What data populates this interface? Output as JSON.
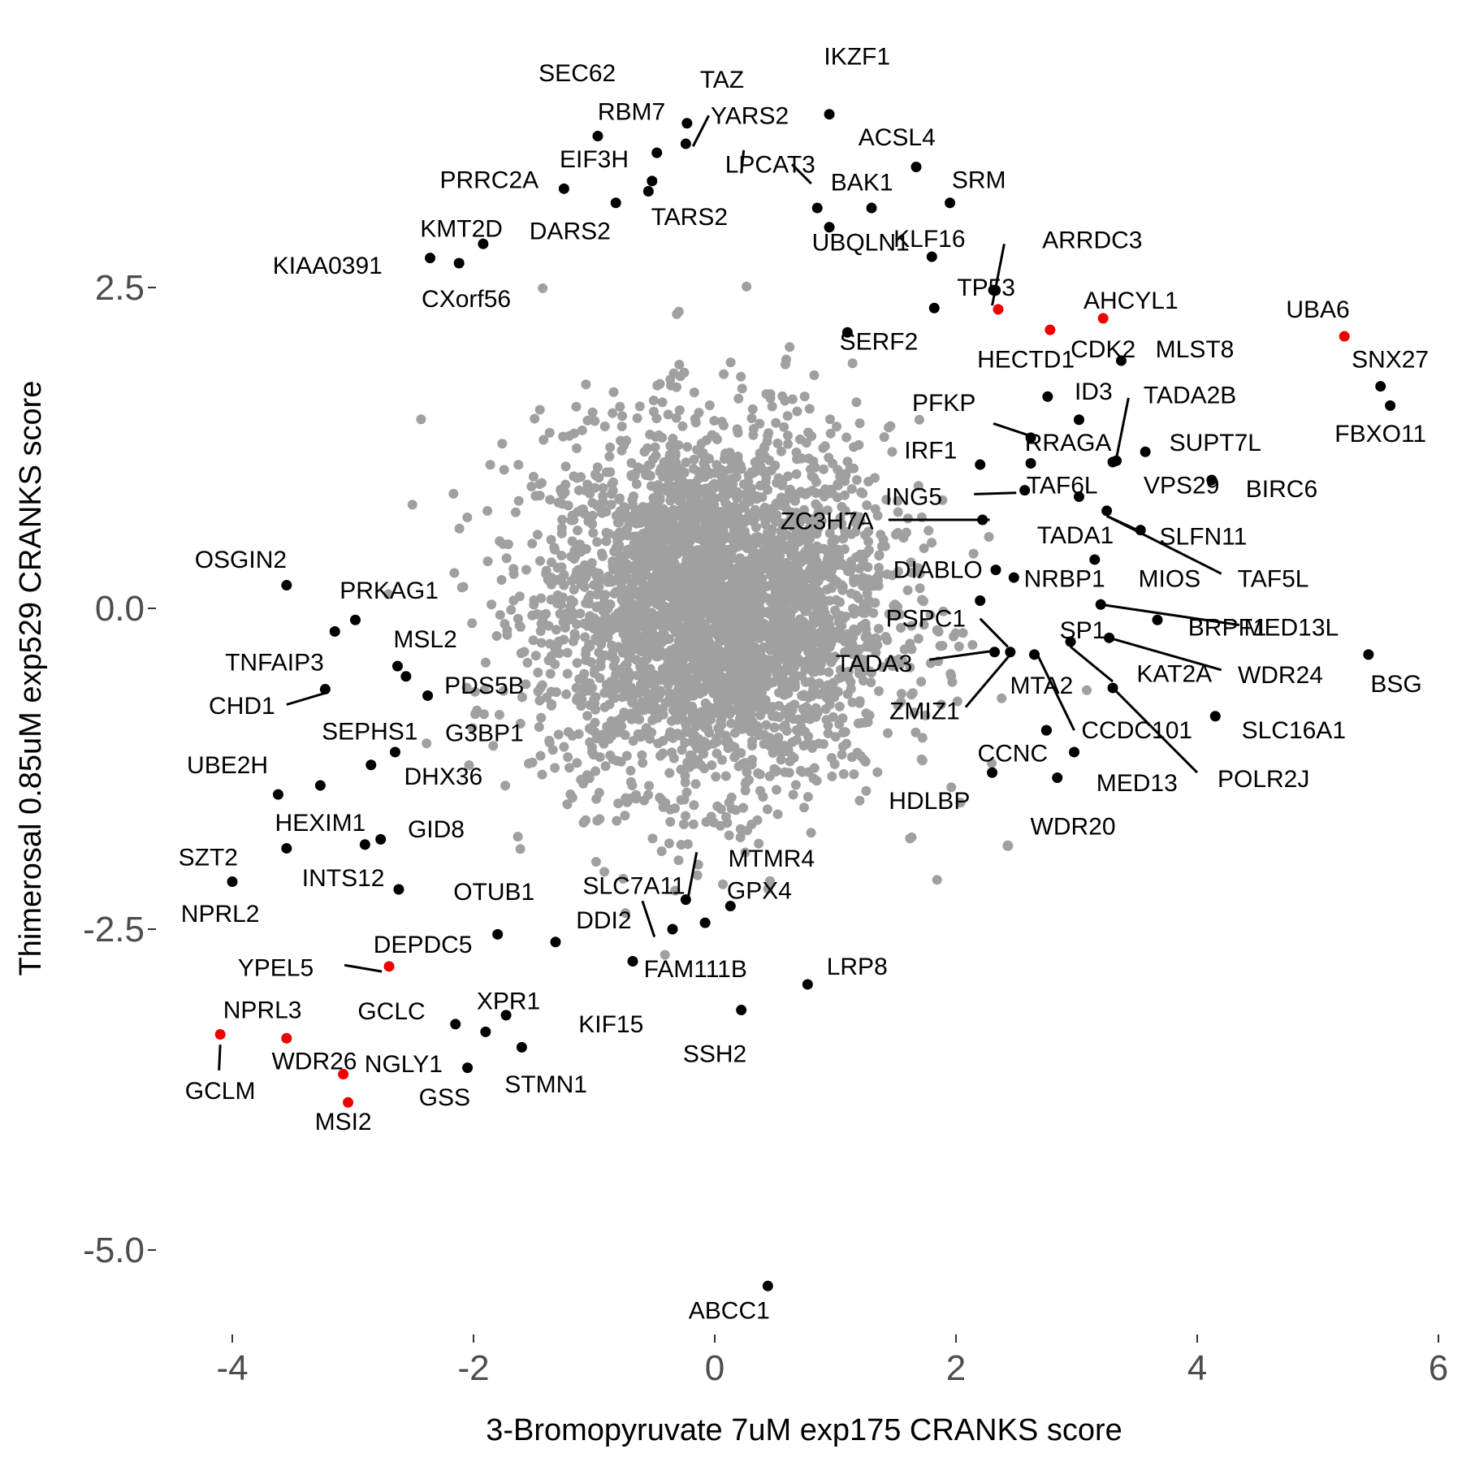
{
  "chart_data": {
    "type": "scatter",
    "xlabel": "3-Bromopyruvate 7uM exp175 CRANKS score",
    "ylabel": "Thimerosal 0.85uM exp529 CRANKS score",
    "xlim": [
      -4.6,
      6.0
    ],
    "ylim": [
      -5.8,
      4.2
    ],
    "x_ticks": [
      -4,
      -2,
      0,
      2,
      4,
      6
    ],
    "x_tick_labels": [
      "-4",
      "-2",
      "0",
      "2",
      "4",
      "6"
    ],
    "y_ticks": [
      2.5,
      0.0,
      -2.5,
      -5.0
    ],
    "y_tick_labels": [
      "2.5",
      "0.0",
      "-2.5",
      "-5.0"
    ],
    "grid": false,
    "colors": {
      "background_points": "#a0a0a0",
      "labeled_points": "#000000",
      "highlight_points": "#ee0000"
    },
    "background_cloud": {
      "description_free": true,
      "count": 3500,
      "x_center": 0.0,
      "y_center": 0.0
    },
    "points": [
      {
        "gene": "IKZF1",
        "x": 0.95,
        "y": 3.85
      },
      {
        "gene": "SEC62",
        "x": -0.97,
        "y": 3.68
      },
      {
        "gene": "TAZ",
        "x": -0.23,
        "y": 3.78
      },
      {
        "gene": "RBM7",
        "x": -0.48,
        "y": 3.55
      },
      {
        "gene": "YARS2",
        "x": -0.24,
        "y": 3.62
      },
      {
        "gene": "ACSL4",
        "x": 1.67,
        "y": 3.44
      },
      {
        "gene": "EIF3H",
        "x": -0.52,
        "y": 3.33
      },
      {
        "gene": "PRRC2A",
        "x": -1.25,
        "y": 3.27
      },
      {
        "gene": "LPCAT3",
        "x": 0.85,
        "y": 3.12
      },
      {
        "gene": "BAK1",
        "x": 1.3,
        "y": 3.12
      },
      {
        "gene": "SRM",
        "x": 1.95,
        "y": 3.16
      },
      {
        "gene": "KLF16",
        "x": 1.8,
        "y": 2.74
      },
      {
        "gene": "UBQLN1",
        "x": 0.95,
        "y": 2.97
      },
      {
        "gene": "TARS2",
        "x": -0.55,
        "y": 3.25
      },
      {
        "gene": "DARS2",
        "x": -0.82,
        "y": 3.16
      },
      {
        "gene": "KMT2D",
        "x": -1.92,
        "y": 2.84
      },
      {
        "gene": "KIAA0391",
        "x": -2.36,
        "y": 2.73
      },
      {
        "gene": "CXorf56",
        "x": -2.12,
        "y": 2.69
      },
      {
        "gene": "ARRDC3",
        "x": 2.31,
        "y": 2.48
      },
      {
        "gene": "TP53",
        "x": 2.35,
        "y": 2.33,
        "highlight": true
      },
      {
        "gene": "AHCYL1",
        "x": 3.22,
        "y": 2.26,
        "highlight": true
      },
      {
        "gene": "CDK2",
        "x": 2.78,
        "y": 2.17,
        "highlight": true
      },
      {
        "gene": "UBA6",
        "x": 5.22,
        "y": 2.12,
        "highlight": true
      },
      {
        "gene": "SERF2",
        "x": 1.1,
        "y": 2.15
      },
      {
        "gene": "HECTD1",
        "x": 1.82,
        "y": 2.34
      },
      {
        "gene": "MLST8",
        "x": 3.37,
        "y": 1.93
      },
      {
        "gene": "SNX27",
        "x": 5.52,
        "y": 1.73
      },
      {
        "gene": "FBXO11",
        "x": 5.6,
        "y": 1.58
      },
      {
        "gene": "ID3",
        "x": 2.76,
        "y": 1.65
      },
      {
        "gene": "PFKP",
        "x": 3.02,
        "y": 1.47
      },
      {
        "gene": "TADA2B",
        "x": 3.33,
        "y": 1.15
      },
      {
        "gene": "RRAGA",
        "x": 2.62,
        "y": 1.33
      },
      {
        "gene": "SUPT7L",
        "x": 3.57,
        "y": 1.22
      },
      {
        "gene": "IRF1",
        "x": 2.2,
        "y": 1.12
      },
      {
        "gene": "TAF6L",
        "x": 2.62,
        "y": 1.13
      },
      {
        "gene": "VPS29",
        "x": 3.3,
        "y": 1.14
      },
      {
        "gene": "BIRC6",
        "x": 4.12,
        "y": 1.0
      },
      {
        "gene": "ING5",
        "x": 2.57,
        "y": 0.92
      },
      {
        "gene": "TADA1",
        "x": 3.02,
        "y": 0.87
      },
      {
        "gene": "ZC3H7A",
        "x": 2.22,
        "y": 0.69
      },
      {
        "gene": "TAF5L",
        "x": 3.25,
        "y": 0.76
      },
      {
        "gene": "SLFN11",
        "x": 3.53,
        "y": 0.61
      },
      {
        "gene": "DIABLO",
        "x": 2.33,
        "y": 0.3
      },
      {
        "gene": "NRBP1",
        "x": 2.48,
        "y": 0.24
      },
      {
        "gene": "MIOS",
        "x": 3.15,
        "y": 0.38
      },
      {
        "gene": "MED13L",
        "x": 3.2,
        "y": 0.03
      },
      {
        "gene": "PSPC1",
        "x": 2.2,
        "y": 0.06
      },
      {
        "gene": "BRPF1",
        "x": 3.67,
        "y": -0.09
      },
      {
        "gene": "BSG",
        "x": 5.42,
        "y": -0.36
      },
      {
        "gene": "SP1",
        "x": 2.95,
        "y": -0.26
      },
      {
        "gene": "WDR24",
        "x": 3.27,
        "y": -0.23
      },
      {
        "gene": "TADA3",
        "x": 2.32,
        "y": -0.34
      },
      {
        "gene": "KAT2A",
        "x": 3.3,
        "y": -0.62
      },
      {
        "gene": "MTA2",
        "x": 2.65,
        "y": -0.36
      },
      {
        "gene": "ZMIZ1",
        "x": 2.45,
        "y": -0.34
      },
      {
        "gene": "CCDC101",
        "x": 2.75,
        "y": -0.95
      },
      {
        "gene": "SLC16A1",
        "x": 4.15,
        "y": -0.84
      },
      {
        "gene": "POLR2J",
        "x": 2.98,
        "y": -1.12
      },
      {
        "gene": "CCNC",
        "x": 2.75,
        "y": -0.95
      },
      {
        "gene": "MED13",
        "x": 2.84,
        "y": -1.32
      },
      {
        "gene": "HDLBP",
        "x": 2.3,
        "y": -1.28
      },
      {
        "gene": "WDR20",
        "x": 2.43,
        "y": -1.85,
        "background_color": true
      },
      {
        "gene": "OSGIN2",
        "x": -3.55,
        "y": 0.18
      },
      {
        "gene": "PRKAG1",
        "x": -2.98,
        "y": -0.09
      },
      {
        "gene": "MSL2",
        "x": -2.63,
        "y": -0.45
      },
      {
        "gene": "TNFAIP3",
        "x": -3.15,
        "y": -0.18
      },
      {
        "gene": "CHD1",
        "x": -3.23,
        "y": -0.63
      },
      {
        "gene": "PDS5B",
        "x": -2.56,
        "y": -0.53
      },
      {
        "gene": "SEPHS1",
        "x": -2.38,
        "y": -0.68
      },
      {
        "gene": "G3BP1",
        "x": -2.65,
        "y": -1.12
      },
      {
        "gene": "DHX36",
        "x": -2.85,
        "y": -1.22
      },
      {
        "gene": "UBE2H",
        "x": -3.62,
        "y": -1.45
      },
      {
        "gene": "HEXIM1",
        "x": -3.27,
        "y": -1.38
      },
      {
        "gene": "GID8",
        "x": -2.77,
        "y": -1.8
      },
      {
        "gene": "INTS12",
        "x": -2.9,
        "y": -1.84
      },
      {
        "gene": "SZT2",
        "x": -3.55,
        "y": -1.87
      },
      {
        "gene": "NPRL2",
        "x": -4.0,
        "y": -2.13
      },
      {
        "gene": "OTUB1",
        "x": -2.62,
        "y": -2.19
      },
      {
        "gene": "DEPDC5",
        "x": -1.8,
        "y": -2.54
      },
      {
        "gene": "YPEL5",
        "x": -2.7,
        "y": -2.79,
        "highlight": true
      },
      {
        "gene": "GCLC",
        "x": -2.15,
        "y": -3.24
      },
      {
        "gene": "XPR1",
        "x": -1.73,
        "y": -3.17
      },
      {
        "gene": "NPRL3",
        "x": -4.1,
        "y": -3.32,
        "highlight": true
      },
      {
        "gene": "WDR26",
        "x": -3.55,
        "y": -3.35,
        "highlight": true
      },
      {
        "gene": "NGLY1",
        "x": -1.9,
        "y": -3.3
      },
      {
        "gene": "GCLM",
        "x": -3.08,
        "y": -3.63,
        "highlight": true
      },
      {
        "gene": "MSI2",
        "x": -3.04,
        "y": -3.85,
        "highlight": true
      },
      {
        "gene": "STMN1",
        "x": -1.6,
        "y": -3.42
      },
      {
        "gene": "GSS",
        "x": -2.05,
        "y": -3.58
      },
      {
        "gene": "KIF15",
        "x": -1.32,
        "y": -2.6
      },
      {
        "gene": "SLC7A11",
        "x": -0.35,
        "y": -2.5
      },
      {
        "gene": "DDI2",
        "x": -0.68,
        "y": -2.75
      },
      {
        "gene": "MTMR4",
        "x": -0.24,
        "y": -2.27
      },
      {
        "gene": "GPX4",
        "x": 0.13,
        "y": -2.32
      },
      {
        "gene": "FAM111B",
        "x": -0.08,
        "y": -2.45
      },
      {
        "gene": "LRP8",
        "x": 0.77,
        "y": -2.93
      },
      {
        "gene": "SSH2",
        "x": 0.22,
        "y": -3.13
      },
      {
        "gene": "ABCC1",
        "x": 0.44,
        "y": -5.28
      }
    ],
    "labels": [
      {
        "text": "IKZF1",
        "lx": 1.18,
        "ly": 4.3
      },
      {
        "text": "SEC62",
        "lx": -1.14,
        "ly": 4.17
      },
      {
        "text": "TAZ",
        "lx": 0.06,
        "ly": 4.12
      },
      {
        "text": "RBM7",
        "lx": -0.69,
        "ly": 3.87
      },
      {
        "text": "YARS2",
        "lx": 0.29,
        "ly": 3.84
      },
      {
        "text": "ACSL4",
        "lx": 1.51,
        "ly": 3.67
      },
      {
        "text": "EIF3H",
        "lx": -1.0,
        "ly": 3.5
      },
      {
        "text": "PRRC2A",
        "lx": -1.87,
        "ly": 3.34
      },
      {
        "text": "LPCAT3",
        "lx": 0.46,
        "ly": 3.46
      },
      {
        "text": "BAK1",
        "lx": 1.22,
        "ly": 3.32
      },
      {
        "text": "SRM",
        "lx": 2.19,
        "ly": 3.34
      },
      {
        "text": "KLF16",
        "lx": 1.78,
        "ly": 2.88
      },
      {
        "text": "UBQLN1",
        "lx": 1.21,
        "ly": 2.85
      },
      {
        "text": "TARS2",
        "lx": -0.21,
        "ly": 3.05
      },
      {
        "text": "DARS2",
        "lx": -1.2,
        "ly": 2.94
      },
      {
        "text": "KMT2D",
        "lx": -2.1,
        "ly": 2.96
      },
      {
        "text": "KIAA0391",
        "lx": -3.21,
        "ly": 2.67
      },
      {
        "text": "CXorf56",
        "lx": -2.06,
        "ly": 2.41
      },
      {
        "text": "ARRDC3",
        "lx": 3.13,
        "ly": 2.87
      },
      {
        "text": "TP53",
        "lx": 2.25,
        "ly": 2.5
      },
      {
        "text": "AHCYL1",
        "lx": 3.45,
        "ly": 2.4
      },
      {
        "text": "CDK2",
        "lx": 3.22,
        "ly": 2.02
      },
      {
        "text": "UBA6",
        "lx": 5.0,
        "ly": 2.33
      },
      {
        "text": "SERF2",
        "lx": 1.36,
        "ly": 2.08
      },
      {
        "text": "HECTD1",
        "lx": 2.58,
        "ly": 1.94
      },
      {
        "text": "MLST8",
        "lx": 3.98,
        "ly": 2.02
      },
      {
        "text": "SNX27",
        "lx": 5.6,
        "ly": 1.94
      },
      {
        "text": "FBXO11",
        "lx": 5.52,
        "ly": 1.36
      },
      {
        "text": "ID3",
        "lx": 3.14,
        "ly": 1.69
      },
      {
        "text": "PFKP",
        "lx": 1.9,
        "ly": 1.6
      },
      {
        "text": "TADA2B",
        "lx": 3.94,
        "ly": 1.66
      },
      {
        "text": "RRAGA",
        "lx": 2.93,
        "ly": 1.29
      },
      {
        "text": "SUPT7L",
        "lx": 4.15,
        "ly": 1.29
      },
      {
        "text": "IRF1",
        "lx": 1.79,
        "ly": 1.23
      },
      {
        "text": "TAF6L",
        "lx": 2.88,
        "ly": 0.96
      },
      {
        "text": "VPS29",
        "lx": 3.87,
        "ly": 0.96
      },
      {
        "text": "BIRC6",
        "lx": 4.7,
        "ly": 0.93
      },
      {
        "text": "ING5",
        "lx": 1.65,
        "ly": 0.87
      },
      {
        "text": "TADA1",
        "lx": 2.99,
        "ly": 0.57
      },
      {
        "text": "ZC3H7A",
        "lx": 0.93,
        "ly": 0.68
      },
      {
        "text": "TAF5L",
        "lx": 4.63,
        "ly": 0.23
      },
      {
        "text": "SLFN11",
        "lx": 4.05,
        "ly": 0.56
      },
      {
        "text": "DIABLO",
        "lx": 1.85,
        "ly": 0.3
      },
      {
        "text": "NRBP1",
        "lx": 2.9,
        "ly": 0.23
      },
      {
        "text": "MIOS",
        "lx": 3.77,
        "ly": 0.23
      },
      {
        "text": "MED13L",
        "lx": 4.78,
        "ly": -0.15
      },
      {
        "text": "PSPC1",
        "lx": 1.75,
        "ly": -0.08
      },
      {
        "text": "BRPF1",
        "lx": 4.25,
        "ly": -0.15
      },
      {
        "text": "BSG",
        "lx": 5.65,
        "ly": -0.59
      },
      {
        "text": "SP1",
        "lx": 3.05,
        "ly": -0.17
      },
      {
        "text": "WDR24",
        "lx": 4.69,
        "ly": -0.52
      },
      {
        "text": "TADA3",
        "lx": 1.32,
        "ly": -0.43
      },
      {
        "text": "KAT2A",
        "lx": 3.81,
        "ly": -0.51
      },
      {
        "text": "MTA2",
        "lx": 2.71,
        "ly": -0.6
      },
      {
        "text": "ZMIZ1",
        "lx": 1.74,
        "ly": -0.8
      },
      {
        "text": "CCDC101",
        "lx": 3.5,
        "ly": -0.95
      },
      {
        "text": "SLC16A1",
        "lx": 4.8,
        "ly": -0.95
      },
      {
        "text": "POLR2J",
        "lx": 4.55,
        "ly": -1.33
      },
      {
        "text": "CCNC",
        "lx": 2.47,
        "ly": -1.13
      },
      {
        "text": "MED13",
        "lx": 3.5,
        "ly": -1.36
      },
      {
        "text": "HDLBP",
        "lx": 1.78,
        "ly": -1.5
      },
      {
        "text": "WDR20",
        "lx": 2.97,
        "ly": -1.7
      },
      {
        "text": "OSGIN2",
        "lx": -3.93,
        "ly": 0.38
      },
      {
        "text": "PRKAG1",
        "lx": -2.7,
        "ly": 0.14
      },
      {
        "text": "MSL2",
        "lx": -2.4,
        "ly": -0.24
      },
      {
        "text": "TNFAIP3",
        "lx": -3.65,
        "ly": -0.42
      },
      {
        "text": "CHD1",
        "lx": -3.92,
        "ly": -0.76
      },
      {
        "text": "PDS5B",
        "lx": -1.91,
        "ly": -0.6
      },
      {
        "text": "SEPHS1",
        "lx": -2.86,
        "ly": -0.96
      },
      {
        "text": "G3BP1",
        "lx": -1.91,
        "ly": -0.97
      },
      {
        "text": "DHX36",
        "lx": -2.25,
        "ly": -1.31
      },
      {
        "text": "UBE2H",
        "lx": -4.04,
        "ly": -1.22
      },
      {
        "text": "HEXIM1",
        "lx": -3.27,
        "ly": -1.67
      },
      {
        "text": "GID8",
        "lx": -2.31,
        "ly": -1.72
      },
      {
        "text": "INTS12",
        "lx": -3.08,
        "ly": -2.1
      },
      {
        "text": "SZT2",
        "lx": -4.2,
        "ly": -1.94
      },
      {
        "text": "NPRL2",
        "lx": -4.1,
        "ly": -2.38
      },
      {
        "text": "OTUB1",
        "lx": -1.83,
        "ly": -2.21
      },
      {
        "text": "DEPDC5",
        "lx": -2.42,
        "ly": -2.62
      },
      {
        "text": "YPEL5",
        "lx": -3.64,
        "ly": -2.8
      },
      {
        "text": "GCLC",
        "lx": -2.68,
        "ly": -3.14
      },
      {
        "text": "XPR1",
        "lx": -1.71,
        "ly": -3.06
      },
      {
        "text": "NPRL3",
        "lx": -3.75,
        "ly": -3.13
      },
      {
        "text": "WDR26",
        "lx": -3.32,
        "ly": -3.53
      },
      {
        "text": "NGLY1",
        "lx": -2.58,
        "ly": -3.55
      },
      {
        "text": "GCLM",
        "lx": -4.1,
        "ly": -3.76
      },
      {
        "text": "MSI2",
        "lx": -3.08,
        "ly": -4.0
      },
      {
        "text": "STMN1",
        "lx": -1.4,
        "ly": -3.71
      },
      {
        "text": "GSS",
        "lx": -2.24,
        "ly": -3.81
      },
      {
        "text": "KIF15",
        "lx": -0.86,
        "ly": -3.24
      },
      {
        "text": "SLC7A11",
        "lx": -0.67,
        "ly": -2.16
      },
      {
        "text": "DDI2",
        "lx": -0.92,
        "ly": -2.43
      },
      {
        "text": "MTMR4",
        "lx": 0.47,
        "ly": -1.95
      },
      {
        "text": "GPX4",
        "lx": 0.37,
        "ly": -2.2
      },
      {
        "text": "FAM111B",
        "lx": -0.16,
        "ly": -2.81
      },
      {
        "text": "LRP8",
        "lx": 1.18,
        "ly": -2.79
      },
      {
        "text": "SSH2",
        "lx": 0.0,
        "ly": -3.47
      },
      {
        "text": "ABCC1",
        "lx": 0.12,
        "ly": -5.47
      }
    ],
    "leaders": [
      {
        "x1": -0.05,
        "y1": 3.84,
        "x2": -0.18,
        "y2": 3.6
      },
      {
        "x1": 0.22,
        "y1": 3.39,
        "x2": 0.24,
        "y2": 3.57
      },
      {
        "x1": 0.8,
        "y1": 3.31,
        "x2": 0.64,
        "y2": 3.46
      },
      {
        "x1": 2.3,
        "y1": 2.36,
        "x2": 2.4,
        "y2": 2.84
      },
      {
        "x1": 2.31,
        "y1": 1.44,
        "x2": 2.63,
        "y2": 1.34
      },
      {
        "x1": 3.43,
        "y1": 1.64,
        "x2": 3.33,
        "y2": 1.17
      },
      {
        "x1": 2.15,
        "y1": 0.89,
        "x2": 2.5,
        "y2": 0.9
      },
      {
        "x1": 1.44,
        "y1": 0.69,
        "x2": 2.28,
        "y2": 0.69
      },
      {
        "x1": 3.25,
        "y1": 0.72,
        "x2": 4.2,
        "y2": 0.27
      },
      {
        "x1": 3.25,
        "y1": 0.72,
        "x2": 3.55,
        "y2": 0.59
      },
      {
        "x1": 3.2,
        "y1": 0.03,
        "x2": 4.35,
        "y2": -0.13
      },
      {
        "x1": 2.2,
        "y1": -0.08,
        "x2": 2.43,
        "y2": -0.3
      },
      {
        "x1": 3.27,
        "y1": -0.23,
        "x2": 4.2,
        "y2": -0.48
      },
      {
        "x1": 2.95,
        "y1": -0.3,
        "x2": 3.3,
        "y2": -0.57
      },
      {
        "x1": 1.78,
        "y1": -0.4,
        "x2": 2.32,
        "y2": -0.33
      },
      {
        "x1": 2.68,
        "y1": -0.37,
        "x2": 2.98,
        "y2": -0.95
      },
      {
        "x1": 2.08,
        "y1": -0.77,
        "x2": 2.45,
        "y2": -0.36
      },
      {
        "x1": 3.3,
        "y1": -0.62,
        "x2": 4.0,
        "y2": -1.28
      },
      {
        "x1": -3.55,
        "y1": -0.75,
        "x2": -3.23,
        "y2": -0.66
      },
      {
        "x1": -3.07,
        "y1": -2.78,
        "x2": -2.76,
        "y2": -2.83
      },
      {
        "x1": -4.1,
        "y1": -3.4,
        "x2": -4.11,
        "y2": -3.6
      },
      {
        "x1": -0.6,
        "y1": -2.28,
        "x2": -0.5,
        "y2": -2.56
      },
      {
        "x1": -0.15,
        "y1": -1.9,
        "x2": -0.22,
        "y2": -2.25
      }
    ]
  }
}
